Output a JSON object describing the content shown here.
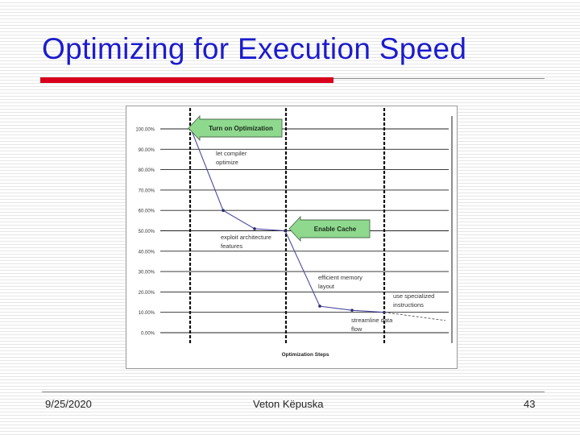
{
  "slide": {
    "title": "Optimizing for Execution Speed",
    "footer_date": "9/25/2020",
    "footer_author": "Veton Këpuska",
    "page_number": "43"
  },
  "colors": {
    "title": "#1c1ccc",
    "accent_bar": "#d8001c",
    "callout_fill": "#8fd98f",
    "line": "#4a4aa0"
  },
  "chart_data": {
    "type": "line",
    "xlabel": "Optimization Steps",
    "ylabel": "",
    "ylim": [
      0,
      100
    ],
    "y_ticks": [
      "0.00%",
      "10.00%",
      "20.00%",
      "30.00%",
      "40.00%",
      "50.00%",
      "60.00%",
      "70.00%",
      "80.00%",
      "90.00%",
      "100.00%"
    ],
    "grid": true,
    "series": [
      {
        "values": [
          100,
          60,
          51,
          50,
          13,
          11,
          10
        ]
      }
    ],
    "projected_values": [
      10,
      6
    ],
    "annotations": [
      "let compiler optimize",
      "exploit architecture features",
      "efficient memory layout",
      "streamline data flow",
      "use specialized instructions"
    ],
    "callouts": [
      "Turn on Optimization",
      "Enable Cache"
    ]
  }
}
